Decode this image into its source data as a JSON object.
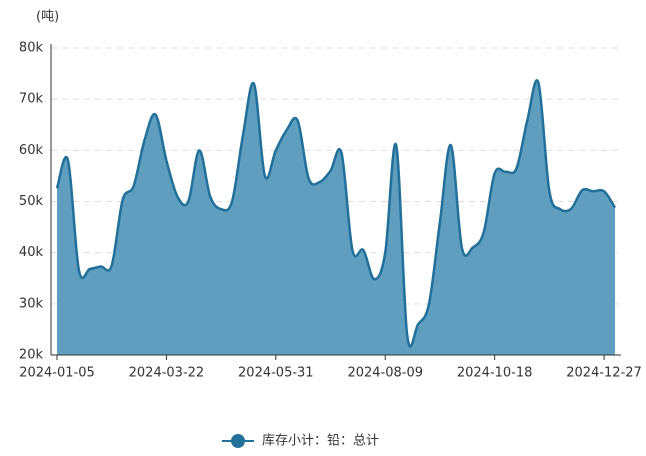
{
  "chart_data": {
    "type": "area",
    "y_unit": "(吨)",
    "categories": [
      "2024-01-05",
      null,
      null,
      null,
      null,
      null,
      null,
      null,
      null,
      null,
      "2024-03-22",
      null,
      null,
      null,
      null,
      null,
      null,
      null,
      null,
      null,
      "2024-05-31",
      null,
      null,
      null,
      null,
      null,
      null,
      null,
      null,
      null,
      "2024-08-09",
      null,
      null,
      null,
      null,
      null,
      null,
      null,
      null,
      null,
      "2024-10-18",
      null,
      null,
      null,
      null,
      null,
      null,
      null,
      null,
      null,
      "2024-12-27",
      null
    ],
    "series": [
      {
        "name": "库存小计：铅：总计",
        "color": "#22709a",
        "fill": "#5f9ebf",
        "values": [
          52600,
          58100,
          36600,
          36800,
          37300,
          37500,
          50300,
          53000,
          62000,
          67000,
          58000,
          51000,
          50000,
          60000,
          51000,
          48500,
          50000,
          63000,
          73000,
          55000,
          60000,
          64000,
          65800,
          54500,
          53800,
          56000,
          59500,
          40500,
          40500,
          34800,
          40000,
          61000,
          24000,
          26000,
          30000,
          46000,
          61000,
          41000,
          41000,
          44000,
          55500,
          55800,
          56500,
          66000,
          73200,
          52000,
          48500,
          48600,
          52200,
          52000,
          52000,
          48800
        ]
      }
    ],
    "ylim": [
      20000,
      80000
    ],
    "yticks": [
      {
        "value": 20000,
        "label": "20k"
      },
      {
        "value": 30000,
        "label": "30k"
      },
      {
        "value": 40000,
        "label": "40k"
      },
      {
        "value": 50000,
        "label": "50k"
      },
      {
        "value": 60000,
        "label": "60k"
      },
      {
        "value": 70000,
        "label": "70k"
      },
      {
        "value": 80000,
        "label": "80k"
      }
    ],
    "grid": true
  }
}
